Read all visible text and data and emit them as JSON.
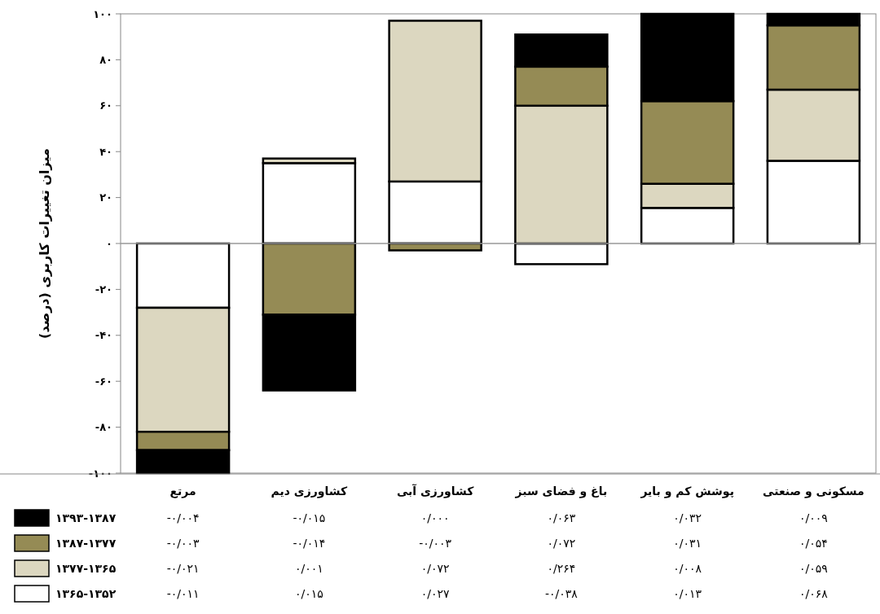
{
  "chart_data": [
    {
      "type": "bar",
      "stacked": true,
      "ylabel": "میزان تغییرات کاربری (درصد)",
      "categories": [
        "مرتع",
        "کشاورزی  دیم",
        "کشاورزی  آبی",
        "باغ و فضای سبز",
        "پوشش کم و بایر",
        "مسکونی و  صنعتی"
      ],
      "series": [
        {
          "name": "۱۳۶۵-۱۳۵۲",
          "color": "#ffffff",
          "values": [
            -28,
            35,
            27,
            -9,
            15.5,
            36
          ]
        },
        {
          "name": "۱۳۷۷-۱۳۶۵",
          "color": "#dcd7c0",
          "values": [
            -54,
            2,
            70,
            60,
            10.5,
            31
          ]
        },
        {
          "name": "۱۳۸۷-۱۳۷۷",
          "color": "#958b55",
          "values": [
            -8,
            -31,
            -3,
            17,
            36,
            28
          ]
        },
        {
          "name": "۱۳۹۳-۱۳۸۷",
          "color": "#000000",
          "values": [
            -10,
            -33,
            0,
            14,
            38,
            5
          ]
        }
      ],
      "ylim": [
        -100,
        100
      ],
      "yticks": [
        {
          "value": -100,
          "label": "-۱۰۰"
        },
        {
          "value": -80,
          "label": "-۸۰"
        },
        {
          "value": -60,
          "label": "-۶۰"
        },
        {
          "value": -40,
          "label": "-۴۰"
        },
        {
          "value": -20,
          "label": "-۲۰"
        },
        {
          "value": 0,
          "label": "۰"
        },
        {
          "value": 20,
          "label": "۲۰"
        },
        {
          "value": 40,
          "label": "۴۰"
        },
        {
          "value": 60,
          "label": "۶۰"
        },
        {
          "value": 80,
          "label": "۸۰"
        },
        {
          "value": 100,
          "label": "۱۰۰"
        }
      ],
      "legend": "bottom left"
    },
    {
      "type": "other",
      "annotations": [
        "-۰/۰۰۴",
        "-۰/۰۱۵",
        "۰/۰۰۰",
        "۰/۰۶۳",
        "۰/۰۳۲",
        "۰/۰۰۹",
        "-۰/۰۰۳",
        "-۰/۰۱۴",
        "-۰/۰۰۳",
        "۰/۰۷۲",
        "۰/۰۳۱",
        "۰/۰۵۴",
        "-۰/۰۲۱",
        "۰/۰۰۱",
        "۰/۰۷۲",
        "۰/۲۶۴",
        "۰/۰۰۸",
        "۰/۰۵۹",
        "-۰/۰۱۱",
        "۰/۰۱۵",
        "۰/۰۲۷",
        "-۰/۰۳۸",
        "۰/۰۱۳",
        "۰/۰۶۸"
      ]
    }
  ]
}
